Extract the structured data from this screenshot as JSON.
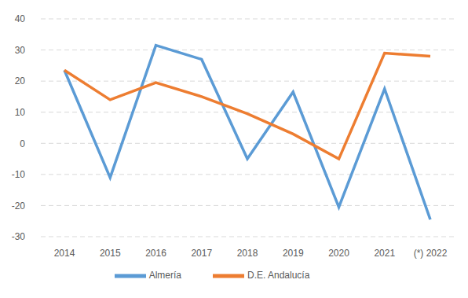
{
  "chart_data": {
    "type": "line",
    "categories": [
      "2014",
      "2015",
      "2016",
      "2017",
      "2018",
      "2019",
      "2020",
      "2021",
      "(*) 2022"
    ],
    "series": [
      {
        "name": "Almería",
        "color": "#5b9bd5",
        "values": [
          23.5,
          -11,
          31.5,
          27,
          -5,
          16.5,
          -20.5,
          17.5,
          -24.5
        ]
      },
      {
        "name": "D.E. Andalucía",
        "color": "#ed7d31",
        "values": [
          23.5,
          14,
          19.5,
          15,
          9.5,
          3,
          -5,
          29,
          28
        ]
      }
    ],
    "ylim": [
      -30,
      40
    ],
    "yticks": [
      -30,
      -20,
      -10,
      0,
      10,
      20,
      30,
      40
    ],
    "grid": true,
    "legend": "bottom"
  }
}
